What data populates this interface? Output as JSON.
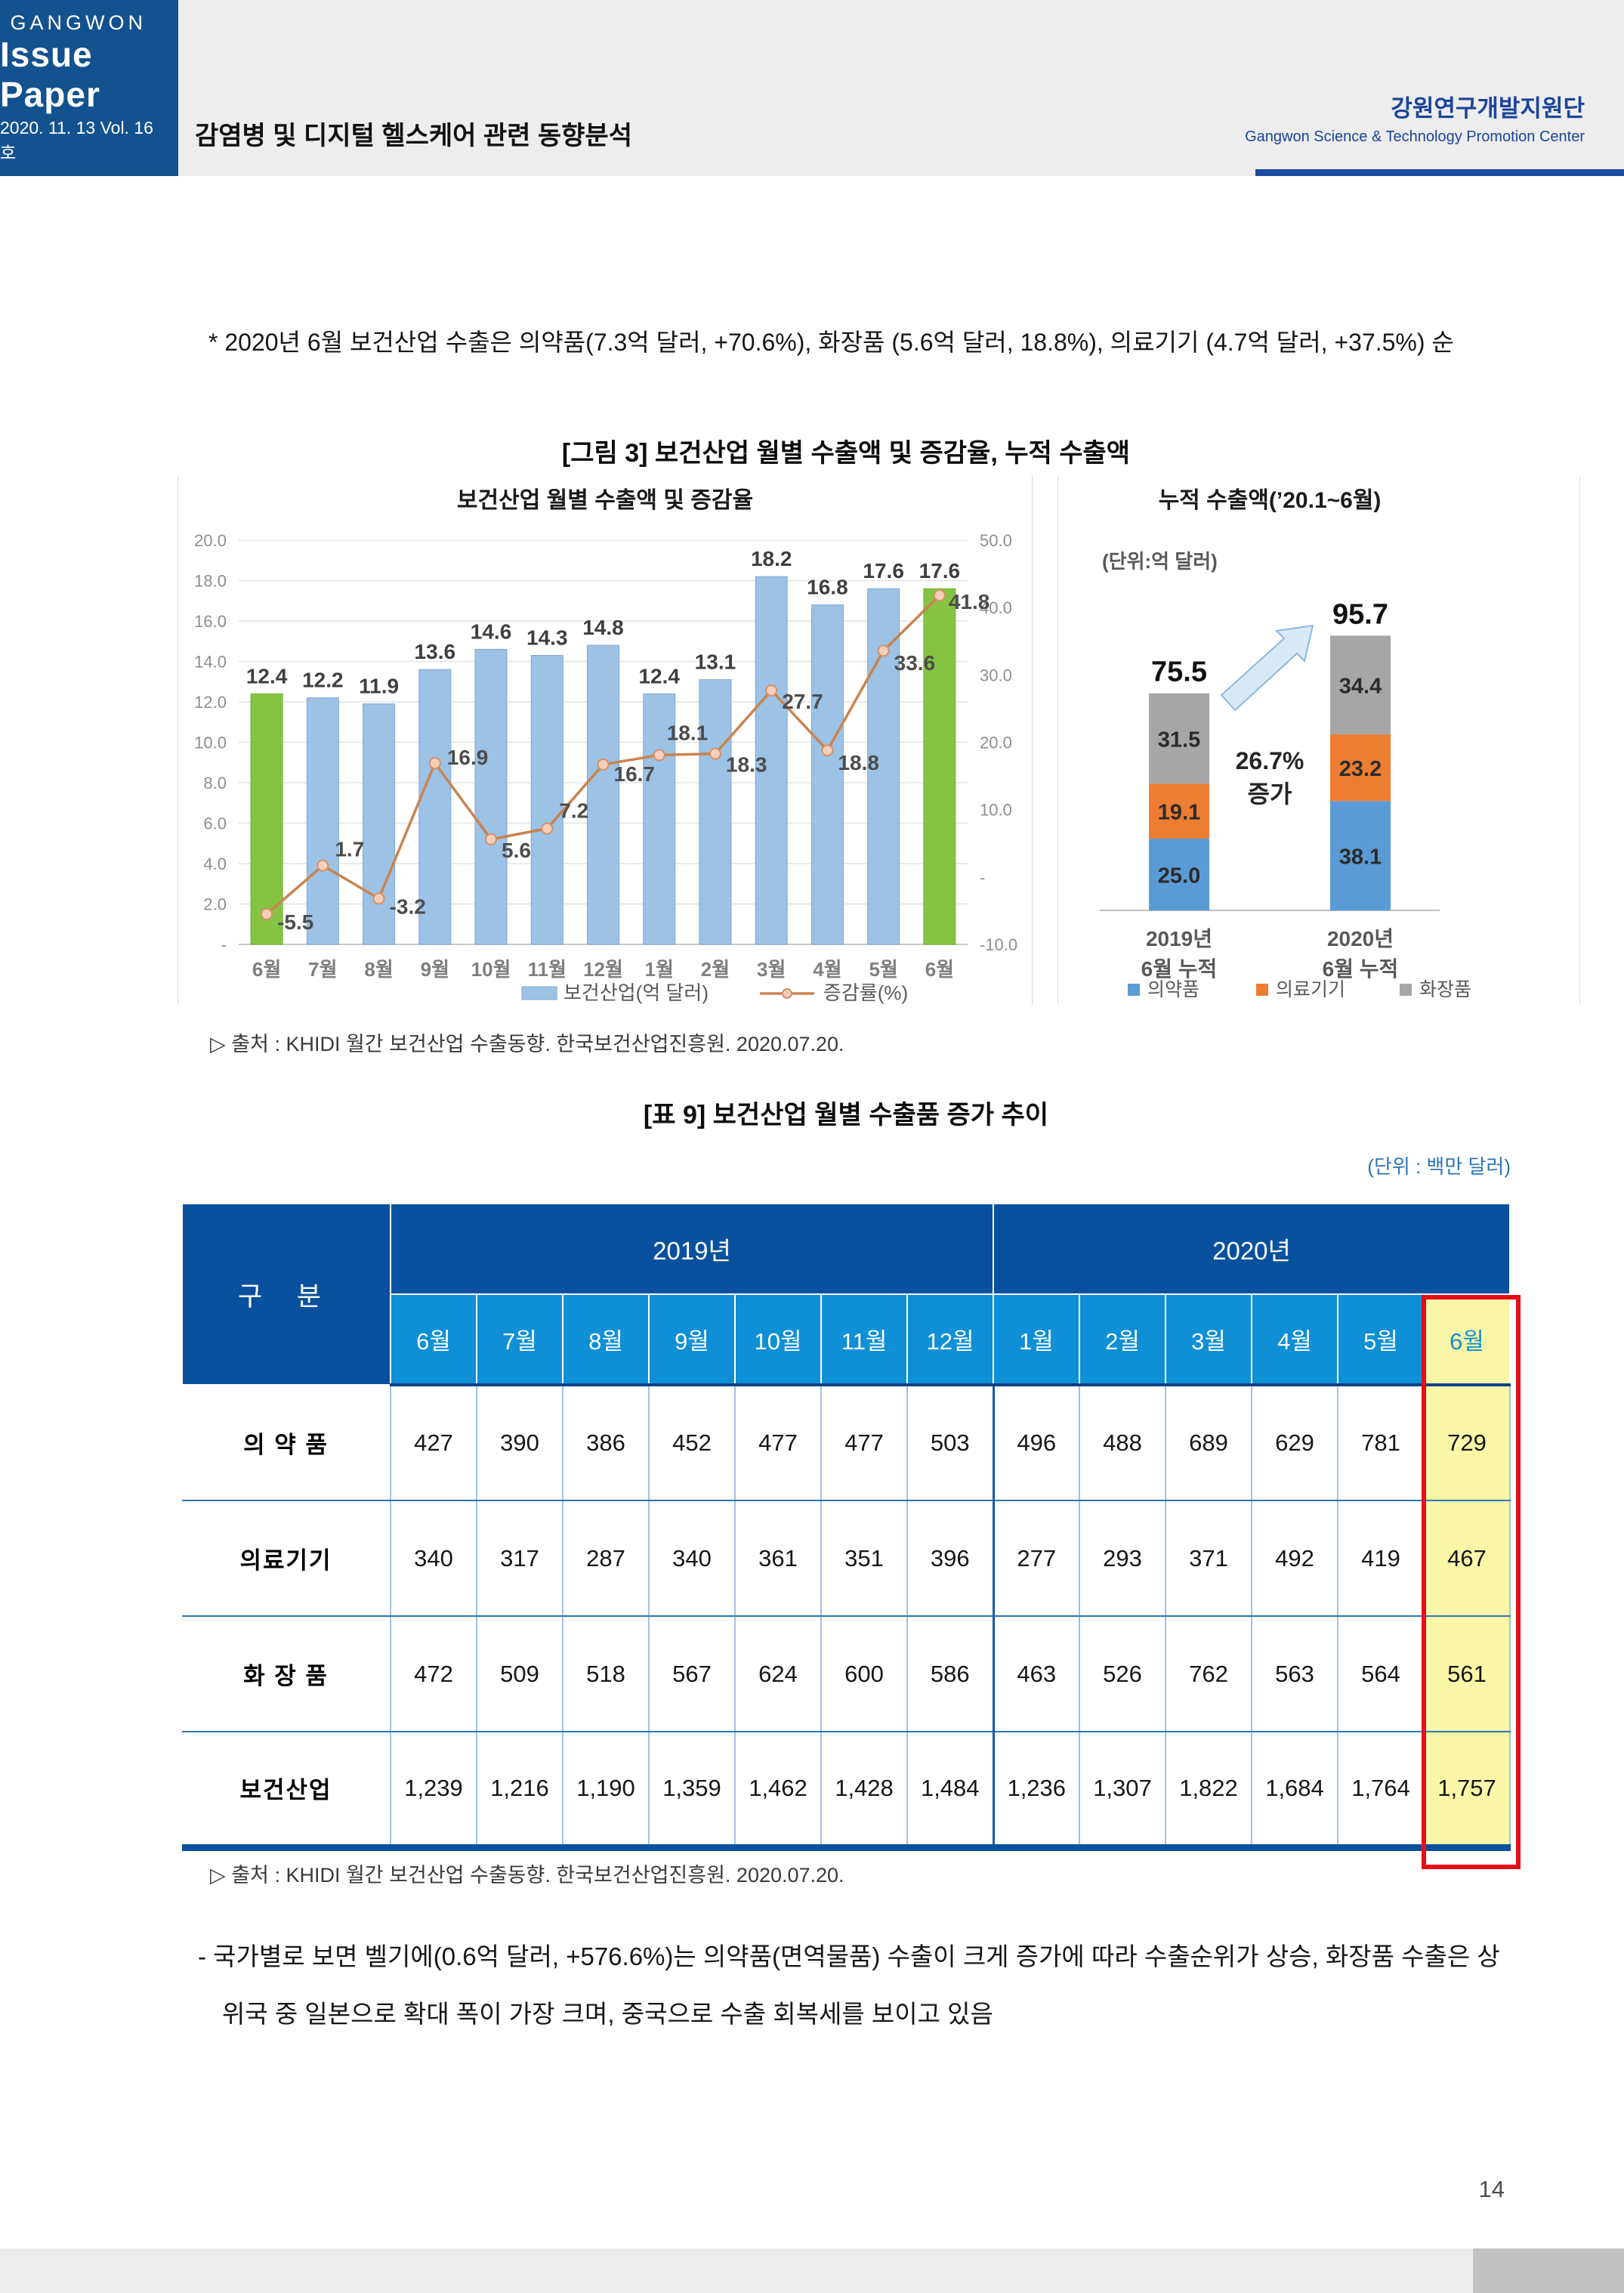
{
  "header": {
    "brand_top": "GANGWON",
    "brand_main": "Issue Paper",
    "brand_sub": "2020. 11. 13  Vol. 16호",
    "doc_title": "감염병 및 디지털 헬스케어 관련 동향분석",
    "org_name_ko": "강원연구개발지원단",
    "org_name_en": "Gangwon Science & Technology Promotion Center",
    "accent_blue": "#14528f"
  },
  "intro_paragraph": {
    "bullet": "*",
    "text": "2020년 6월 보건산업 수출은 의약품(7.3억 달러, +70.6%), 화장품 (5.6억 달러, 18.8%), 의료기기 (4.7억 달러, +37.5%) 순"
  },
  "figure": {
    "caption": "[그림 3] 보건산업 월별 수출액 및 증감율, 누적 수출액",
    "source": "▷ 출처 : KHIDI 월간 보건산업 수출동향. 한국보건산업진흥원. 2020.07.20."
  },
  "chart_data": [
    {
      "type": "bar",
      "title": "보건산업 월별 수출액 및 증감율",
      "categories": [
        "6월",
        "7월",
        "8월",
        "9월",
        "10월",
        "11월",
        "12월",
        "1월",
        "2월",
        "3월",
        "4월",
        "5월",
        "6월"
      ],
      "series": [
        {
          "name": "보건산업(억 달러)",
          "type": "bar",
          "axis": "left",
          "values": [
            12.4,
            12.2,
            11.9,
            13.6,
            14.6,
            14.3,
            14.8,
            12.4,
            13.1,
            18.2,
            16.8,
            17.6,
            17.6
          ]
        },
        {
          "name": "증감률(%)",
          "type": "line",
          "axis": "right",
          "values": [
            -5.5,
            1.7,
            -3.2,
            16.9,
            5.6,
            7.2,
            16.7,
            18.1,
            18.3,
            27.7,
            18.8,
            33.6,
            41.8
          ]
        }
      ],
      "left_axis": {
        "min": 0,
        "max": 20,
        "ticks": [
          "20.0",
          "18.0",
          "16.0",
          "14.0",
          "12.0",
          "10.0",
          "8.0",
          "6.0",
          "4.0",
          "2.0",
          "-"
        ]
      },
      "right_axis": {
        "min": -10,
        "max": 50,
        "ticks": [
          "50.0",
          "40.0",
          "30.0",
          "20.0",
          "10.0",
          "-",
          "-10.0"
        ]
      },
      "bar_color": "#9cc2e5",
      "bar_highlight_color": "#84c442",
      "highlight_indices": [
        0,
        12
      ],
      "line_color": "#c98450",
      "legend_position": "bottom",
      "grid": true
    },
    {
      "type": "bar",
      "subtype": "stacked",
      "title": "누적 수출액(’20.1~6월)",
      "unit_label": "(단위:억 달러)",
      "categories": [
        [
          "2019년",
          "6월 누적"
        ],
        [
          "2020년",
          "6월 누적"
        ]
      ],
      "series": [
        {
          "name": "의약품",
          "color": "#5b9bd5",
          "values": [
            25.0,
            38.1
          ]
        },
        {
          "name": "의료기기",
          "color": "#ed7d31",
          "values": [
            19.1,
            23.2
          ]
        },
        {
          "name": "화장품",
          "color": "#a6a6a6",
          "values": [
            31.5,
            34.4
          ]
        }
      ],
      "totals": [
        "75.5",
        "95.7"
      ],
      "annotation": [
        "26.7%",
        "증가"
      ],
      "legend_position": "bottom"
    }
  ],
  "table": {
    "caption": "[표 9] 보건산업 월별 수출품 증가 추이",
    "unit_note": "(단위 : 백만 달러)",
    "corner_label": "구 분",
    "year_groups": [
      {
        "label": "2019년",
        "span": 7
      },
      {
        "label": "2020년",
        "span": 6
      }
    ],
    "months": [
      "6월",
      "7월",
      "8월",
      "9월",
      "10월",
      "11월",
      "12월",
      "1월",
      "2월",
      "3월",
      "4월",
      "5월",
      "6월"
    ],
    "rows": [
      {
        "label": "의 약 품",
        "values": [
          "427",
          "390",
          "386",
          "452",
          "477",
          "477",
          "503",
          "496",
          "488",
          "689",
          "629",
          "781",
          "729"
        ]
      },
      {
        "label": "의료기기",
        "values": [
          "340",
          "317",
          "287",
          "340",
          "361",
          "351",
          "396",
          "277",
          "293",
          "371",
          "492",
          "419",
          "467"
        ]
      },
      {
        "label": "화 장 품",
        "values": [
          "472",
          "509",
          "518",
          "567",
          "624",
          "600",
          "586",
          "463",
          "526",
          "762",
          "563",
          "564",
          "561"
        ]
      },
      {
        "label": "보건산업",
        "values": [
          "1,239",
          "1,216",
          "1,190",
          "1,359",
          "1,462",
          "1,428",
          "1,484",
          "1,236",
          "1,307",
          "1,822",
          "1,684",
          "1,764",
          "1,757"
        ]
      }
    ],
    "source": "▷ 출처 : KHIDI 월간 보건산업 수출동향. 한국보건산업진흥원. 2020.07.20."
  },
  "body_paragraph": {
    "bullet": "-",
    "text": "국가별로 보면 벨기에(0.6억 달러, +576.6%)는 의약품(면역물품) 수출이 크게 증가에 따라 수출순위가 상승, 화장품 수출은 상위국 중 일본으로 확대 폭이 가장 크며, 중국으로 수출 회복세를 보이고 있음"
  },
  "footer": {
    "page_number": "14"
  }
}
